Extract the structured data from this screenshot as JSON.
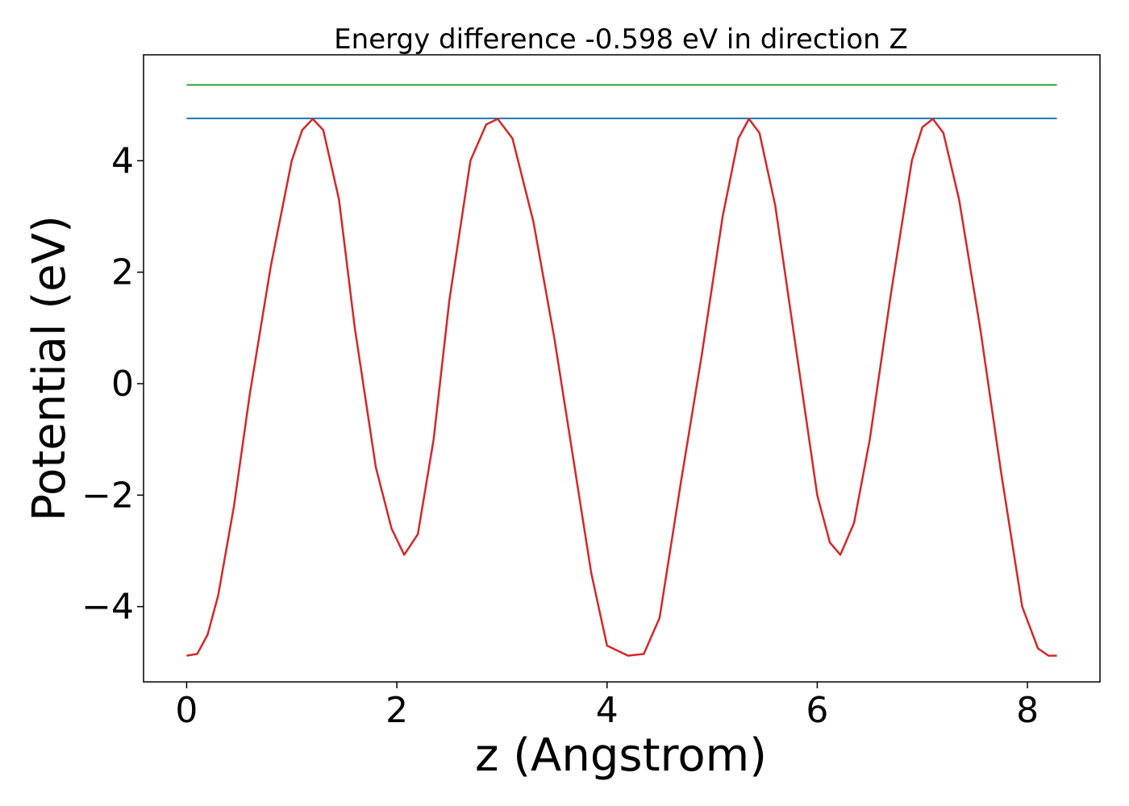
{
  "chart_data": {
    "type": "line",
    "title": "Energy difference -0.598 eV in direction Z",
    "xlabel": "z (Angstrom)",
    "ylabel": "Potential (eV)",
    "xlim": [
      -0.41,
      8.69
    ],
    "ylim": [
      -5.35,
      5.9
    ],
    "xticks": [
      0,
      2,
      4,
      6,
      8
    ],
    "yticks": [
      -4,
      -2,
      0,
      2,
      4
    ],
    "xtick_labels": [
      "0",
      "2",
      "4",
      "6",
      "8"
    ],
    "ytick_labels": [
      "−4",
      "−2",
      "0",
      "2",
      "4"
    ],
    "grid": false,
    "series": [
      {
        "color": "#2ca02c",
        "x": [
          0.0,
          8.28
        ],
        "y": [
          5.36,
          5.36
        ]
      },
      {
        "color": "#1f77b4",
        "x": [
          0.0,
          8.28
        ],
        "y": [
          4.76,
          4.76
        ]
      },
      {
        "color": "#d62728",
        "x": [
          0.0,
          0.1,
          0.2,
          0.3,
          0.45,
          0.6,
          0.8,
          1.0,
          1.1,
          1.2,
          1.3,
          1.45,
          1.6,
          1.8,
          1.95,
          2.07,
          2.2,
          2.35,
          2.5,
          2.7,
          2.85,
          2.96,
          3.1,
          3.3,
          3.5,
          3.7,
          3.85,
          4.0,
          4.2,
          4.35,
          4.5,
          4.7,
          4.9,
          5.1,
          5.25,
          5.35,
          5.45,
          5.6,
          5.8,
          6.0,
          6.12,
          6.22,
          6.35,
          6.5,
          6.7,
          6.9,
          7.0,
          7.1,
          7.2,
          7.35,
          7.55,
          7.75,
          7.95,
          8.1,
          8.2,
          8.28
        ],
        "y": [
          -4.88,
          -4.85,
          -4.5,
          -3.8,
          -2.2,
          -0.2,
          2.1,
          4.0,
          4.55,
          4.75,
          4.55,
          3.3,
          1.0,
          -1.5,
          -2.6,
          -3.07,
          -2.7,
          -1.0,
          1.5,
          4.0,
          4.65,
          4.75,
          4.4,
          2.9,
          0.8,
          -1.6,
          -3.4,
          -4.7,
          -4.88,
          -4.85,
          -4.2,
          -1.8,
          0.5,
          3.0,
          4.4,
          4.75,
          4.5,
          3.2,
          0.6,
          -2.0,
          -2.85,
          -3.07,
          -2.5,
          -1.0,
          1.6,
          4.0,
          4.6,
          4.75,
          4.5,
          3.3,
          1.0,
          -1.6,
          -4.0,
          -4.75,
          -4.88,
          -4.88
        ]
      }
    ]
  }
}
